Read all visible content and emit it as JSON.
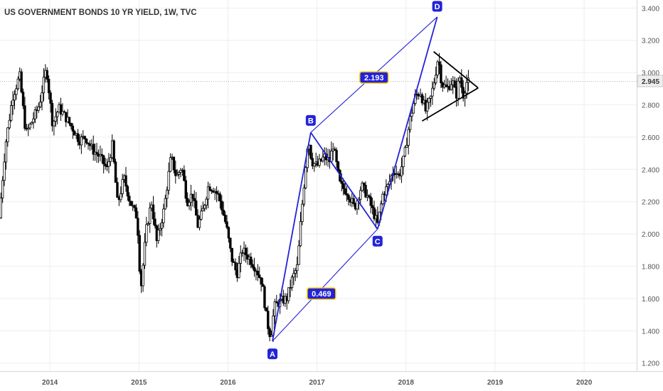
{
  "chart_data": {
    "type": "candlestick",
    "title": "US GOVERNMENT BONDS 10 YR YIELD, 1W, TVC",
    "y_ticks": [
      "1.200",
      "1.400",
      "1.600",
      "1.800",
      "2.000",
      "2.200",
      "2.400",
      "2.600",
      "2.800",
      "3.000",
      "3.200",
      "3.400"
    ],
    "y_tick_values": [
      1.2,
      1.4,
      1.6,
      1.8,
      2.0,
      2.2,
      2.4,
      2.6,
      2.8,
      3.0,
      3.2,
      3.4
    ],
    "ylim": [
      1.15,
      3.45
    ],
    "x_ticks": [
      "2014",
      "2015",
      "2016",
      "2017",
      "2018",
      "2019",
      "2020"
    ],
    "x_tick_values": [
      2014,
      2015,
      2016,
      2017,
      2018,
      2019,
      2020
    ],
    "xlim": [
      2013.44,
      2020.59
    ],
    "grid": true,
    "last_value": "2.945",
    "series_path": [
      [
        2013.45,
        2.1
      ],
      [
        2013.52,
        2.55
      ],
      [
        2013.6,
        2.85
      ],
      [
        2013.68,
        2.98
      ],
      [
        2013.75,
        2.62
      ],
      [
        2013.82,
        2.7
      ],
      [
        2013.9,
        2.8
      ],
      [
        2013.98,
        3.03
      ],
      [
        2014.05,
        2.68
      ],
      [
        2014.12,
        2.78
      ],
      [
        2014.2,
        2.72
      ],
      [
        2014.28,
        2.65
      ],
      [
        2014.35,
        2.58
      ],
      [
        2014.42,
        2.6
      ],
      [
        2014.5,
        2.52
      ],
      [
        2014.58,
        2.48
      ],
      [
        2014.66,
        2.4
      ],
      [
        2014.72,
        2.55
      ],
      [
        2014.78,
        2.18
      ],
      [
        2014.85,
        2.35
      ],
      [
        2014.92,
        2.2
      ],
      [
        2015.0,
        2.1
      ],
      [
        2015.04,
        1.65
      ],
      [
        2015.1,
        2.02
      ],
      [
        2015.16,
        2.2
      ],
      [
        2015.22,
        1.95
      ],
      [
        2015.3,
        2.15
      ],
      [
        2015.38,
        2.48
      ],
      [
        2015.44,
        2.35
      ],
      [
        2015.5,
        2.42
      ],
      [
        2015.56,
        2.2
      ],
      [
        2015.62,
        2.25
      ],
      [
        2015.68,
        2.05
      ],
      [
        2015.74,
        2.15
      ],
      [
        2015.8,
        2.3
      ],
      [
        2015.86,
        2.28
      ],
      [
        2015.92,
        2.23
      ],
      [
        2016.0,
        2.05
      ],
      [
        2016.06,
        1.85
      ],
      [
        2016.12,
        1.75
      ],
      [
        2016.18,
        1.9
      ],
      [
        2016.26,
        1.85
      ],
      [
        2016.34,
        1.78
      ],
      [
        2016.4,
        1.7
      ],
      [
        2016.46,
        1.45
      ],
      [
        2016.5,
        1.36
      ],
      [
        2016.54,
        1.55
      ],
      [
        2016.6,
        1.58
      ],
      [
        2016.68,
        1.6
      ],
      [
        2016.74,
        1.72
      ],
      [
        2016.8,
        1.8
      ],
      [
        2016.84,
        2.1
      ],
      [
        2016.88,
        2.35
      ],
      [
        2016.92,
        2.6
      ],
      [
        2016.96,
        2.45
      ],
      [
        2017.02,
        2.42
      ],
      [
        2017.1,
        2.48
      ],
      [
        2017.16,
        2.45
      ],
      [
        2017.2,
        2.55
      ],
      [
        2017.28,
        2.3
      ],
      [
        2017.36,
        2.26
      ],
      [
        2017.44,
        2.16
      ],
      [
        2017.52,
        2.3
      ],
      [
        2017.58,
        2.24
      ],
      [
        2017.64,
        2.15
      ],
      [
        2017.7,
        2.06
      ],
      [
        2017.76,
        2.25
      ],
      [
        2017.82,
        2.3
      ],
      [
        2017.88,
        2.4
      ],
      [
        2017.94,
        2.36
      ],
      [
        2018.0,
        2.48
      ],
      [
        2018.06,
        2.7
      ],
      [
        2018.12,
        2.85
      ],
      [
        2018.18,
        2.88
      ],
      [
        2018.24,
        2.76
      ],
      [
        2018.3,
        2.85
      ],
      [
        2018.34,
        2.96
      ],
      [
        2018.38,
        3.1
      ],
      [
        2018.42,
        2.93
      ],
      [
        2018.48,
        2.9
      ],
      [
        2018.54,
        2.95
      ],
      [
        2018.58,
        2.85
      ],
      [
        2018.62,
        2.98
      ],
      [
        2018.66,
        2.86
      ],
      [
        2018.7,
        2.94
      ]
    ],
    "harmonic_points": [
      {
        "label": "A",
        "x": 2016.5,
        "y": 1.336
      },
      {
        "label": "B",
        "x": 2016.93,
        "y": 2.629
      },
      {
        "label": "C",
        "x": 2017.68,
        "y": 2.03
      },
      {
        "label": "D",
        "x": 2018.35,
        "y": 3.345
      }
    ],
    "ratios": [
      {
        "value": "2.193",
        "x": 2017.64,
        "y": 2.97
      },
      {
        "value": "0.469",
        "x": 2017.05,
        "y": 1.63
      }
    ],
    "triangle": [
      {
        "x1": 2018.31,
        "y1": 3.13,
        "x2": 2018.81,
        "y2": 2.905
      },
      {
        "x1": 2018.18,
        "y1": 2.7,
        "x2": 2018.81,
        "y2": 2.905
      }
    ]
  }
}
